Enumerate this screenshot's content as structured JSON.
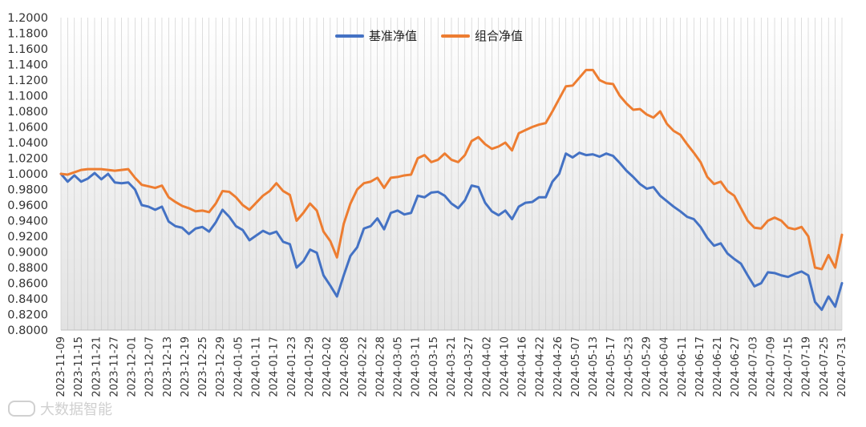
{
  "chart_data": {
    "type": "line",
    "title": "",
    "xlabel": "",
    "ylabel": "",
    "ylim": [
      0.8,
      1.2
    ],
    "y_ticks": [
      "0.8000",
      "0.8200",
      "0.8400",
      "0.8600",
      "0.8800",
      "0.9000",
      "0.9200",
      "0.9400",
      "0.9600",
      "0.9800",
      "1.0000",
      "1.0200",
      "1.0400",
      "1.0600",
      "1.0800",
      "1.1000",
      "1.1200",
      "1.1400",
      "1.1600",
      "1.1800",
      "1.2000"
    ],
    "x_tick_labels": [
      "2023-11-09",
      "2023-11-15",
      "2023-11-21",
      "2023-11-27",
      "2023-12-01",
      "2023-12-07",
      "2023-12-13",
      "2023-12-19",
      "2023-12-25",
      "2023-12-29",
      "2024-01-05",
      "2024-01-11",
      "2024-01-17",
      "2024-01-23",
      "2024-01-29",
      "2024-02-02",
      "2024-02-08",
      "2024-02-22",
      "2024-02-28",
      "2024-03-05",
      "2024-03-11",
      "2024-03-15",
      "2024-03-21",
      "2024-03-27",
      "2024-04-02",
      "2024-04-10",
      "2024-04-16",
      "2024-04-22",
      "2024-04-26",
      "2024-05-07",
      "2024-05-13",
      "2024-05-17",
      "2024-05-23",
      "2024-05-29",
      "2024-06-04",
      "2024-06-11",
      "2024-06-17",
      "2024-06-21",
      "2024-06-27",
      "2024-07-03",
      "2024-07-09",
      "2024-07-15",
      "2024-07-19",
      "2024-07-25",
      "2024-07-31"
    ],
    "legend": {
      "position": "top-center"
    },
    "grid": false,
    "series": [
      {
        "name": "基准净值",
        "color": "#4472C4",
        "values": [
          1.0,
          0.99,
          0.998,
          0.99,
          0.994,
          1.001,
          0.993,
          1.0,
          0.989,
          0.988,
          0.989,
          0.98,
          0.96,
          0.958,
          0.954,
          0.958,
          0.939,
          0.933,
          0.931,
          0.923,
          0.93,
          0.932,
          0.926,
          0.938,
          0.954,
          0.945,
          0.933,
          0.928,
          0.915,
          0.921,
          0.927,
          0.923,
          0.926,
          0.913,
          0.91,
          0.88,
          0.888,
          0.903,
          0.899,
          0.87,
          0.857,
          0.843,
          0.87,
          0.895,
          0.906,
          0.93,
          0.933,
          0.943,
          0.929,
          0.95,
          0.953,
          0.948,
          0.95,
          0.972,
          0.97,
          0.976,
          0.977,
          0.972,
          0.962,
          0.956,
          0.966,
          0.985,
          0.983,
          0.963,
          0.952,
          0.947,
          0.953,
          0.942,
          0.958,
          0.963,
          0.964,
          0.97,
          0.97,
          0.99,
          1.0,
          1.026,
          1.021,
          1.027,
          1.024,
          1.025,
          1.022,
          1.026,
          1.023,
          1.014,
          1.004,
          0.996,
          0.987,
          0.981,
          0.983,
          0.972,
          0.965,
          0.958,
          0.952,
          0.945,
          0.942,
          0.932,
          0.918,
          0.908,
          0.911,
          0.898,
          0.891,
          0.885,
          0.87,
          0.856,
          0.86,
          0.874,
          0.873,
          0.87,
          0.868,
          0.872,
          0.875,
          0.87,
          0.836,
          0.826,
          0.843,
          0.83,
          0.86
        ]
      },
      {
        "name": "组合净值",
        "color": "#ED7D31",
        "values": [
          1.0,
          0.999,
          1.002,
          1.005,
          1.006,
          1.006,
          1.006,
          1.005,
          1.004,
          1.005,
          1.006,
          0.995,
          0.986,
          0.984,
          0.982,
          0.985,
          0.97,
          0.964,
          0.959,
          0.956,
          0.952,
          0.953,
          0.951,
          0.962,
          0.978,
          0.977,
          0.97,
          0.96,
          0.954,
          0.963,
          0.972,
          0.978,
          0.988,
          0.978,
          0.973,
          0.94,
          0.95,
          0.962,
          0.953,
          0.926,
          0.914,
          0.893,
          0.936,
          0.962,
          0.98,
          0.988,
          0.99,
          0.995,
          0.982,
          0.995,
          0.996,
          0.998,
          0.999,
          1.02,
          1.024,
          1.015,
          1.018,
          1.026,
          1.018,
          1.015,
          1.024,
          1.042,
          1.047,
          1.038,
          1.032,
          1.035,
          1.04,
          1.03,
          1.052,
          1.056,
          1.06,
          1.063,
          1.065,
          1.08,
          1.096,
          1.112,
          1.113,
          1.123,
          1.133,
          1.133,
          1.12,
          1.116,
          1.115,
          1.1,
          1.09,
          1.082,
          1.083,
          1.076,
          1.072,
          1.08,
          1.064,
          1.055,
          1.05,
          1.038,
          1.027,
          1.015,
          0.996,
          0.987,
          0.99,
          0.978,
          0.972,
          0.956,
          0.94,
          0.931,
          0.93,
          0.94,
          0.944,
          0.94,
          0.931,
          0.929,
          0.932,
          0.92,
          0.88,
          0.878,
          0.896,
          0.88,
          0.922
        ]
      }
    ]
  },
  "legend": {
    "items": [
      {
        "label": "基准净值",
        "color": "#4472C4"
      },
      {
        "label": "组合净值",
        "color": "#ED7D31"
      }
    ]
  },
  "watermark": {
    "text": "大数据智能"
  }
}
